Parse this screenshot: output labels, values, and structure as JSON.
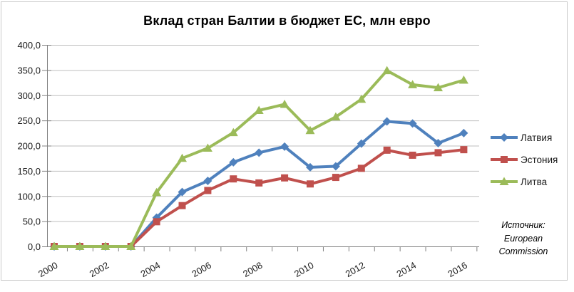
{
  "chart_data": {
    "type": "line",
    "title": "Вклад стран Балтии в бюджет ЕС, млн евро",
    "years": [
      2000,
      2001,
      2002,
      2003,
      2004,
      2005,
      2006,
      2007,
      2008,
      2009,
      2010,
      2011,
      2012,
      2013,
      2014,
      2015,
      2016
    ],
    "x_tick_labels": [
      "2000",
      "2002",
      "2004",
      "2006",
      "2008",
      "2010",
      "2012",
      "2014",
      "2016"
    ],
    "ylim": [
      0,
      400
    ],
    "ytick_step": 50,
    "y_tick_labels": [
      "0,0",
      "50,0",
      "100,0",
      "150,0",
      "200,0",
      "250,0",
      "300,0",
      "350,0",
      "400,0"
    ],
    "grid": true,
    "legend_position": "right",
    "series": [
      {
        "id": "latvia",
        "name": "Латвия",
        "color": "#4F81BD",
        "marker": "diamond",
        "values": [
          0,
          0,
          0,
          0,
          57,
          108,
          130,
          167,
          186,
          198,
          157,
          159,
          204,
          248,
          244,
          205,
          225
        ]
      },
      {
        "id": "estonia",
        "name": "Эстония",
        "color": "#C0504D",
        "marker": "square",
        "values": [
          0,
          0,
          0,
          0,
          49,
          81,
          111,
          134,
          126,
          136,
          124,
          137,
          155,
          191,
          181,
          186,
          192
        ]
      },
      {
        "id": "lithuania",
        "name": "Литва",
        "color": "#9BBB59",
        "marker": "triangle",
        "values": [
          0,
          0,
          0,
          0,
          107,
          175,
          195,
          226,
          270,
          282,
          230,
          257,
          292,
          349,
          321,
          315,
          330
        ]
      }
    ],
    "source_note": {
      "lines": [
        "Источник:",
        "European",
        "Commission"
      ]
    }
  },
  "colors": {
    "gridline": "#BFBFBF",
    "axis": "#808080",
    "tick_text": "#1A1A1A",
    "frame": "#C9C9C9",
    "background": "#FFFFFF"
  }
}
